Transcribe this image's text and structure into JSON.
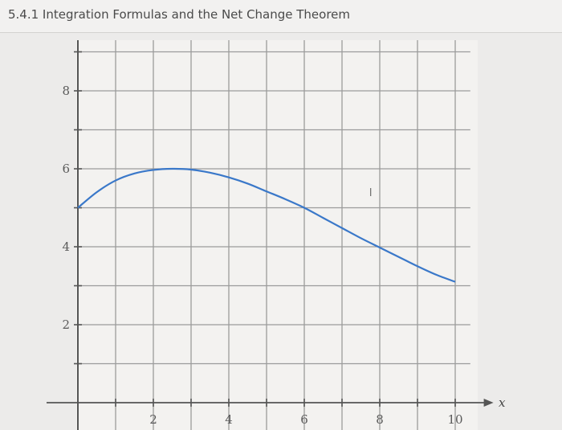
{
  "page": {
    "title": "5.4.1 Integration Formulas and the Net Change Theorem"
  },
  "chart_data": {
    "type": "line",
    "title": "",
    "xlabel": "x",
    "ylabel": "",
    "xlim": [
      0,
      10.4
    ],
    "ylim": [
      0,
      9
    ],
    "grid": true,
    "grid_step": 1,
    "x_tick_labels": [
      "2",
      "4",
      "6",
      "8",
      "10"
    ],
    "y_tick_labels": [
      "2",
      "4",
      "6",
      "8"
    ],
    "stray_mark": "l",
    "series": [
      {
        "color": "#3a78c9",
        "x": [
          0,
          0.5,
          1,
          1.5,
          2,
          2.5,
          3,
          3.5,
          4,
          4.5,
          5,
          5.5,
          6,
          6.5,
          7,
          7.5,
          8,
          8.5,
          9,
          9.5,
          10
        ],
        "y": [
          5.0,
          5.4,
          5.7,
          5.88,
          5.97,
          6.0,
          5.98,
          5.9,
          5.78,
          5.62,
          5.42,
          5.22,
          5.0,
          4.74,
          4.48,
          4.22,
          3.98,
          3.74,
          3.5,
          3.28,
          3.1
        ]
      }
    ]
  }
}
